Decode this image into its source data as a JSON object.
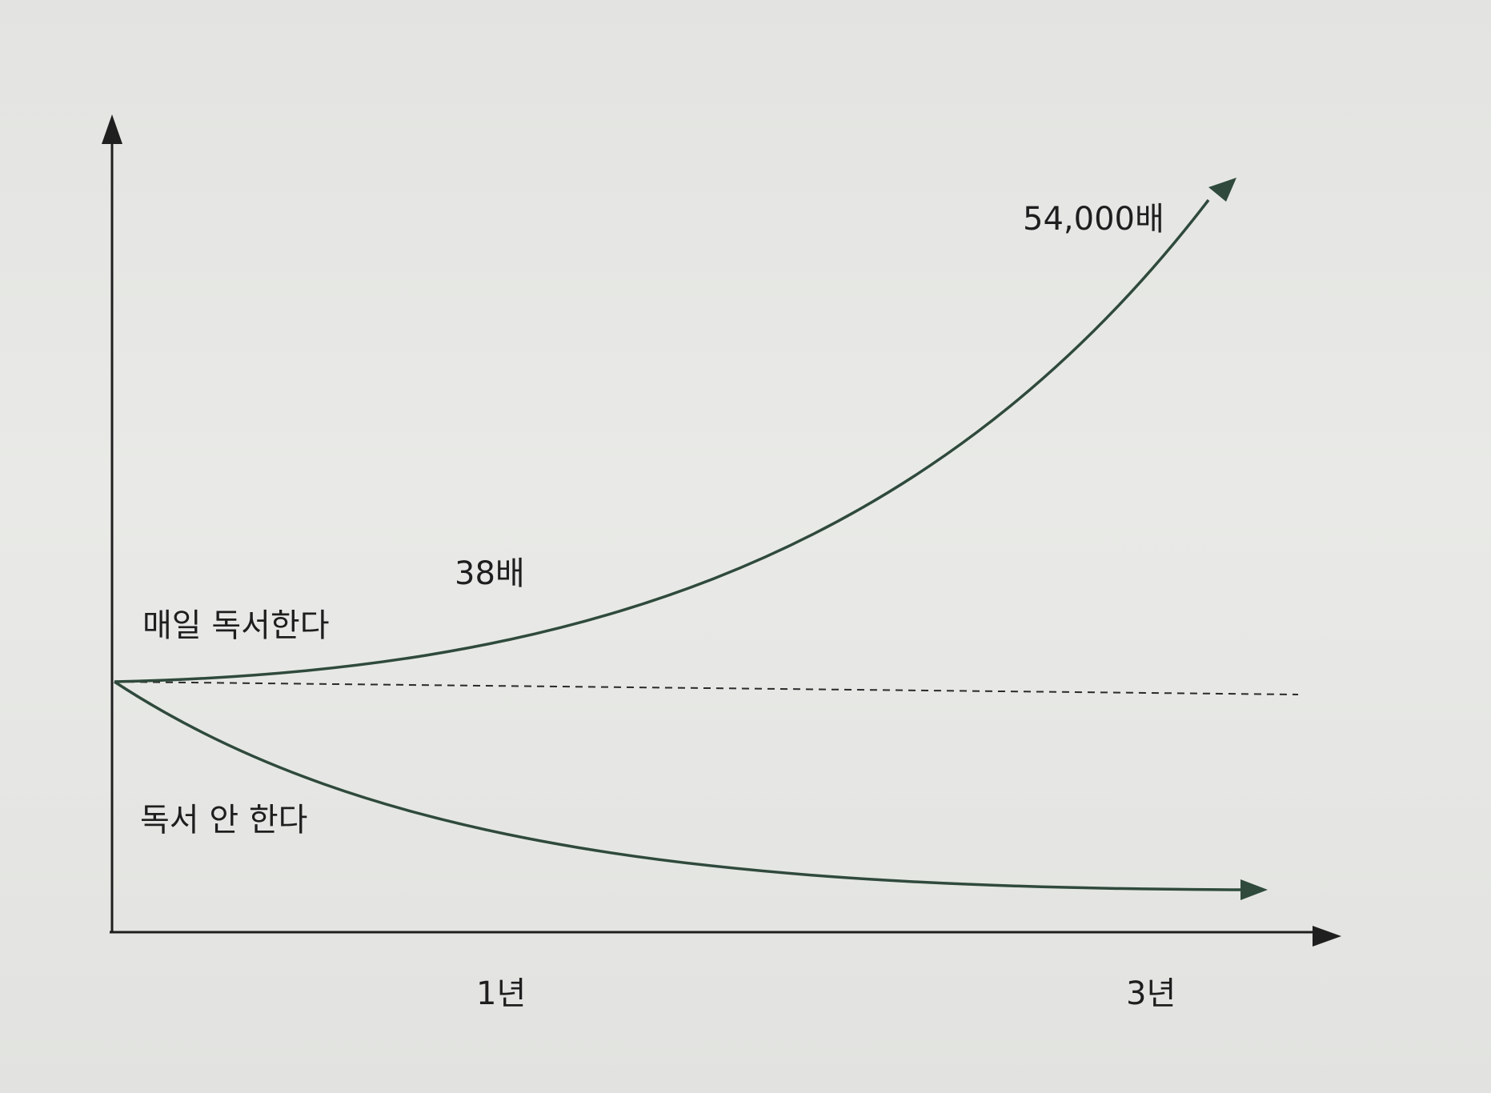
{
  "chart_data": {
    "type": "line",
    "title": "",
    "xlabel": "",
    "ylabel": "",
    "x_ticks": [
      "1년",
      "3년"
    ],
    "series": [
      {
        "name": "매일 독서한다",
        "color": "#2f4a3c",
        "trend": "exponential-up",
        "annotations": [
          "38배",
          "54,000배"
        ]
      },
      {
        "name": "독서 안 한다",
        "color": "#2f4a3c",
        "trend": "decay-down"
      }
    ],
    "baseline": {
      "style": "dashed",
      "color": "#2a2a2a"
    },
    "grid": false,
    "legend": "none"
  }
}
